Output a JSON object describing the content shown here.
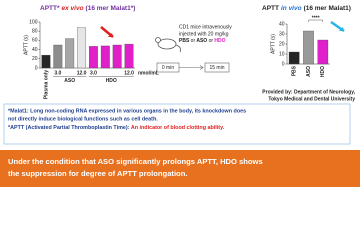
{
  "chart_data": [
    {
      "type": "bar",
      "title": [
        "APTT*",
        "ex vivo",
        "(16 mer Malat1*)"
      ],
      "y_label": "APTT (s)",
      "categories": [
        "Plasma only",
        "3.0",
        null,
        "12.0",
        "3.0",
        null,
        null,
        "12.0"
      ],
      "values": [
        28,
        50,
        64,
        88,
        47,
        48,
        50,
        52
      ],
      "colors": [
        "#262626",
        "#8c8c8c",
        "#a6a6a6",
        "#e6e6e6",
        "#e020c8",
        "#e020c8",
        "#e020c8",
        "#e020c8"
      ],
      "group_labels": [
        "ASO",
        "HDO"
      ],
      "unit_label": "nmol/mL",
      "ylim": [
        0,
        100
      ],
      "yticks": [
        0,
        20,
        40,
        60,
        80,
        100
      ]
    },
    {
      "type": "bar",
      "title": [
        "APTT",
        "in vivo",
        "(16 mer Malat1)"
      ],
      "y_label": "APTT (s)",
      "categories": [
        "PBS",
        "ASO",
        "HDO"
      ],
      "values": [
        12,
        33,
        24
      ],
      "colors": [
        "#262626",
        "#9a9a9a",
        "#e020c8"
      ],
      "annotation": "****",
      "ylim": [
        0,
        40
      ],
      "yticks": [
        0,
        10,
        20,
        30,
        40
      ]
    }
  ],
  "protocol": {
    "lines": [
      "CD1 mice intravenously",
      "injected with 20 mg/kg"
    ],
    "groups": [
      "PBS",
      "or",
      "ASO",
      "or",
      "HDO"
    ],
    "timeline": [
      "0 min",
      "15 min"
    ]
  },
  "credit": [
    "Provided by: Department of Neurology,",
    "Tokyo Medical and Dental University"
  ],
  "footnotes": {
    "malat1": [
      "*Malat1: Long non-coding RNA expressed in various organs in the body, its knockdown does",
      "not directly induce biological functions such as cell death."
    ],
    "aptt": [
      "*APTT (Activated Partial Thromboplastin Time):",
      "An indicator of blood clotting ability."
    ]
  },
  "conclusion": [
    "Under the condition that ASO significantly prolongs APTT, HDO shows",
    "the suppression for degree of APTT prolongation."
  ]
}
